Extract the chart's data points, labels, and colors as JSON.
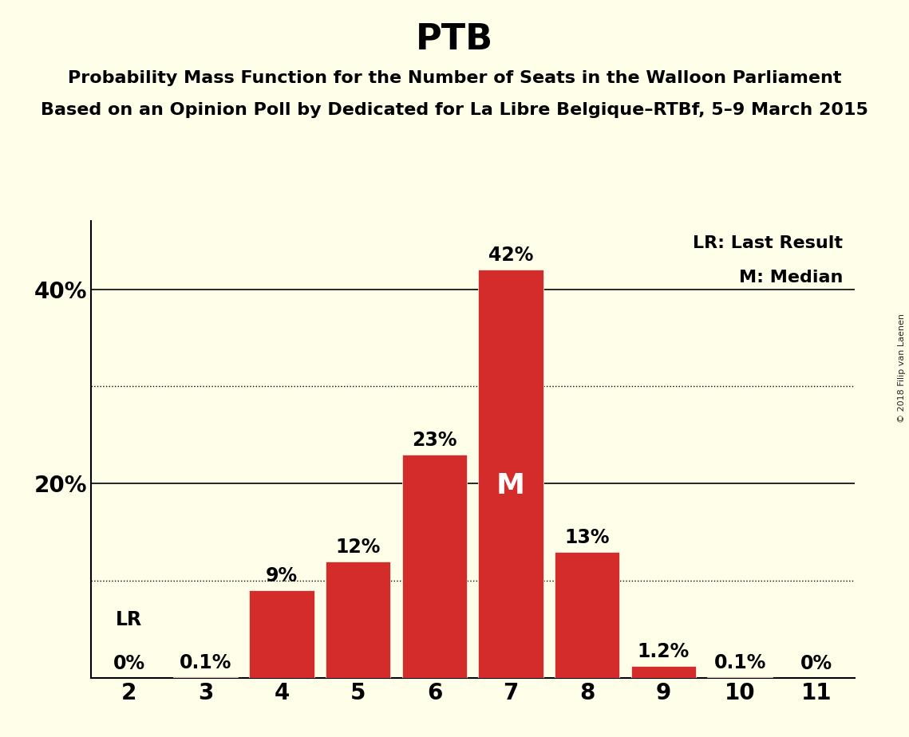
{
  "title": "PTB",
  "subtitle1": "Probability Mass Function for the Number of Seats in the Walloon Parliament",
  "subtitle2": "Based on an Opinion Poll by Dedicated for La Libre Belgique–RTBf, 5–9 March 2015",
  "categories": [
    2,
    3,
    4,
    5,
    6,
    7,
    8,
    9,
    10,
    11
  ],
  "values": [
    0.0,
    0.1,
    9.0,
    12.0,
    23.0,
    42.0,
    13.0,
    1.2,
    0.1,
    0.0
  ],
  "labels": [
    "0%",
    "0.1%",
    "9%",
    "12%",
    "23%",
    "42%",
    "13%",
    "1.2%",
    "0.1%",
    "0%"
  ],
  "bar_color": "#d42b2b",
  "background_color": "#fffee8",
  "median_bar": 7,
  "median_label": "M",
  "lr_bar": 2,
  "lr_label": "LR",
  "legend_lr": "LR: Last Result",
  "legend_m": "M: Median",
  "solid_yticks": [
    20,
    40
  ],
  "solid_ytick_labels": [
    "20%",
    "40%"
  ],
  "dotted_lines": [
    10,
    30
  ],
  "solid_lines": [
    20,
    40
  ],
  "ylim": [
    0,
    47
  ],
  "watermark": "© 2018 Filip van Laenen",
  "title_fontsize": 32,
  "subtitle_fontsize": 16,
  "label_fontsize": 17,
  "tick_fontsize": 20,
  "legend_fontsize": 16,
  "watermark_fontsize": 8,
  "lr_label_fontsize": 17
}
